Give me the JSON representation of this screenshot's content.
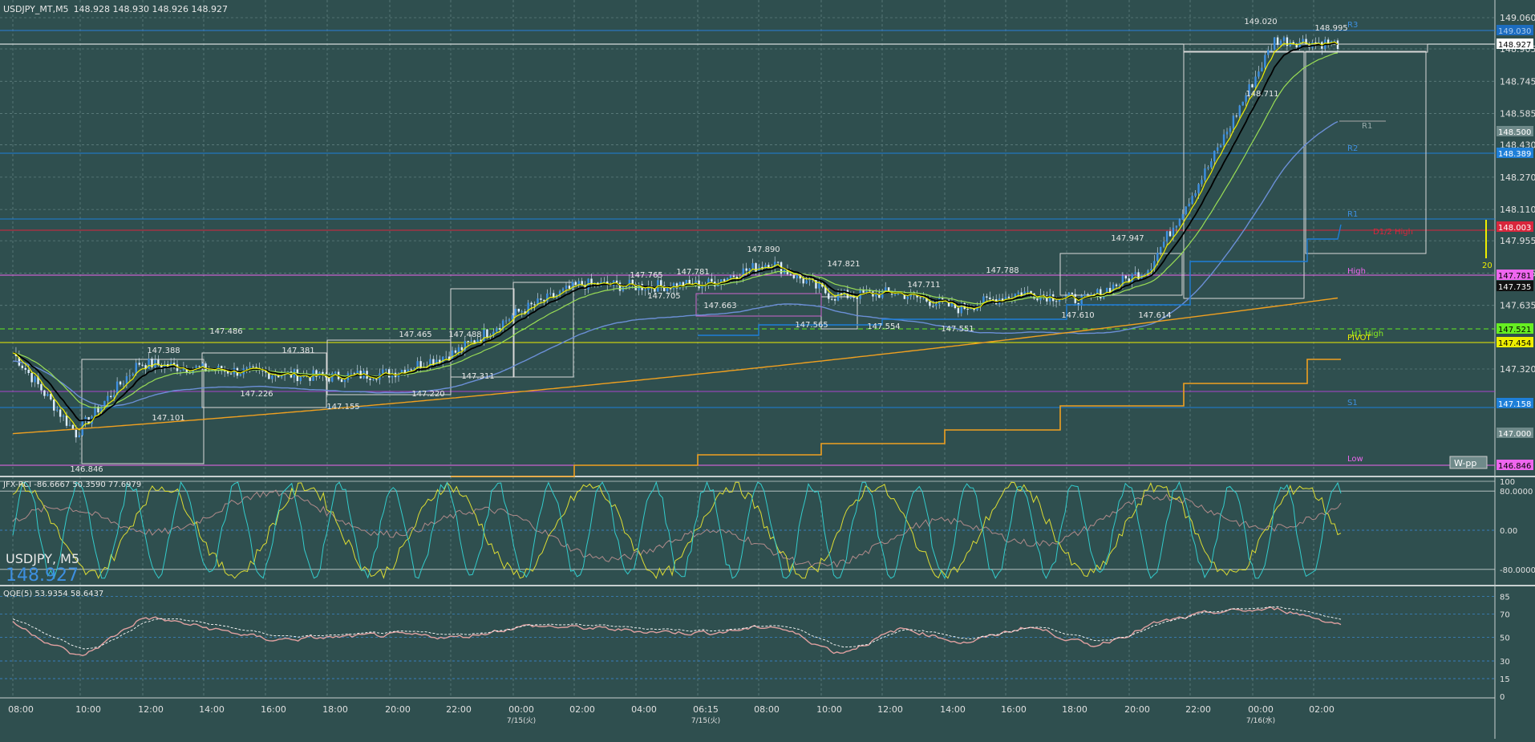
{
  "header": {
    "title": "USDJPY_MT,M5",
    "ohlc": "148.928 148.930 148.926 148.927"
  },
  "ticker": {
    "symbol": "USDJPY, M5",
    "price": "148.927"
  },
  "time_axis": [
    "08:00",
    "10:00",
    "12:00",
    "14:00",
    "16:00",
    "18:00",
    "20:00",
    "22:00",
    "00:00",
    "02:00",
    "04:00",
    "06:15",
    "08:00",
    "10:00",
    "12:00",
    "14:00",
    "16:00",
    "18:00",
    "20:00",
    "22:00",
    "00:00",
    "02:00"
  ],
  "date_axis": [
    "7/15(火)",
    "7/15(火)",
    "7/16(水)"
  ],
  "price_axis": [
    "149.060",
    "148.905",
    "148.745",
    "148.585",
    "148.430",
    "148.270",
    "148.110",
    "147.955",
    "147.795",
    "147.635",
    "147.320"
  ],
  "price_tags": [
    {
      "text": "149.030",
      "bg": "#1c6cc0",
      "fg": "#aaccee"
    },
    {
      "text": "148.927",
      "bg": "#ffffff",
      "fg": "#000000"
    },
    {
      "text": "148.500",
      "bg": "#6f8a8a",
      "fg": "#ffffff"
    },
    {
      "text": "148.389",
      "bg": "#1e7fd8",
      "fg": "#ffffff"
    },
    {
      "text": "148.003",
      "bg": "#d9263c",
      "fg": "#ffffff"
    },
    {
      "text": "147.781",
      "bg": "#ee66ee",
      "fg": "#000000"
    },
    {
      "text": "147.735",
      "bg": "#111111",
      "fg": "#ffffff"
    },
    {
      "text": "147.521",
      "bg": "#66ee22",
      "fg": "#000000"
    },
    {
      "text": "147.454",
      "bg": "#eeee00",
      "fg": "#000000"
    },
    {
      "text": "147.158",
      "bg": "#1e7fd8",
      "fg": "#ffffff"
    },
    {
      "text": "147.000",
      "bg": "#6f8a8a",
      "fg": "#ffffff"
    },
    {
      "text": "146.846",
      "bg": "#ee66ee",
      "fg": "#000000"
    }
  ],
  "level_labels": [
    {
      "text": "R3",
      "color": "#3d8fe0"
    },
    {
      "text": "R1",
      "color": "#9aa"
    },
    {
      "text": "R2",
      "color": "#3d8fe0"
    },
    {
      "text": "R1",
      "color": "#3d8fe0"
    },
    {
      "text": "D1/2 High",
      "color": "#d9263c"
    },
    {
      "text": "High",
      "color": "#ee66ee"
    },
    {
      "text": "H1 High",
      "color": "#88ee22"
    },
    {
      "text": "PIVOT",
      "color": "#eeee00"
    },
    {
      "text": "S1",
      "color": "#3d8fe0"
    },
    {
      "text": "Low",
      "color": "#ee66ee"
    }
  ],
  "annotations": [
    "149.020",
    "148.995",
    "148.711",
    "147.947",
    "147.614",
    "147.610",
    "147.788",
    "147.711",
    "147.551",
    "147.554",
    "147.821",
    "147.565",
    "147.890",
    "147.663",
    "147.781",
    "147.705",
    "147.765",
    "147.488",
    "147.465",
    "147.311",
    "147.220",
    "147.381",
    "147.155",
    "147.486",
    "147.226",
    "147.388",
    "147.101",
    "146.846"
  ],
  "wpp_label": "W-pp",
  "spread_label": "20",
  "rci": {
    "title": "JFX-RCI -86.6667 50.3590 77.6979",
    "axis": [
      "100",
      "80.0000",
      "0.00",
      "-80.0000"
    ]
  },
  "qqe": {
    "title": "QQE(5) 53.9354 58.6437",
    "axis": [
      "85",
      "70",
      "50",
      "30",
      "15",
      "0"
    ]
  },
  "colors": {
    "bg": "#2f4f4f",
    "grid": "#5f7f7f",
    "candle": "#3d8fe0",
    "ema_fast": "#eeee00",
    "ema_mid": "#000000",
    "ema_slow": "#99dd55",
    "sma": "#6b8fd6",
    "orange": "#f0a020"
  },
  "chart_data": [
    {
      "type": "line",
      "title": "USDJPY_MT,M5",
      "x": [
        "08:00",
        "10:00",
        "12:00",
        "14:00",
        "16:00",
        "18:00",
        "20:00",
        "22:00",
        "00:00",
        "02:00",
        "04:00",
        "06:15",
        "08:00",
        "10:00",
        "12:00",
        "14:00",
        "16:00",
        "18:00",
        "20:00",
        "22:00",
        "00:00",
        "02:00"
      ],
      "series": [
        {
          "name": "USDJPY",
          "values": [
            147.4,
            147.0,
            147.35,
            147.32,
            147.3,
            147.28,
            147.3,
            147.4,
            147.6,
            147.74,
            147.73,
            147.74,
            147.85,
            147.68,
            147.7,
            147.62,
            147.7,
            147.66,
            147.82,
            148.35,
            148.95,
            148.93
          ]
        }
      ],
      "ylim": [
        146.8,
        149.1
      ]
    },
    {
      "type": "line",
      "title": "JFX-RCI -86.6667 50.3590 77.6979",
      "ylim": [
        -100,
        100
      ]
    },
    {
      "type": "line",
      "title": "QQE(5) 53.9354 58.6437",
      "x": [
        "08:00",
        "10:00",
        "12:00",
        "14:00",
        "16:00",
        "18:00",
        "20:00",
        "22:00",
        "00:00",
        "02:00",
        "04:00",
        "06:15",
        "08:00",
        "10:00",
        "12:00",
        "14:00",
        "16:00",
        "18:00",
        "20:00",
        "22:00",
        "00:00",
        "02:00"
      ],
      "series": [
        {
          "name": "QQE",
          "values": [
            60,
            32,
            68,
            58,
            48,
            50,
            52,
            50,
            60,
            58,
            55,
            54,
            60,
            36,
            58,
            45,
            60,
            42,
            62,
            72,
            74,
            60
          ]
        }
      ],
      "ylim": [
        0,
        85
      ]
    }
  ]
}
